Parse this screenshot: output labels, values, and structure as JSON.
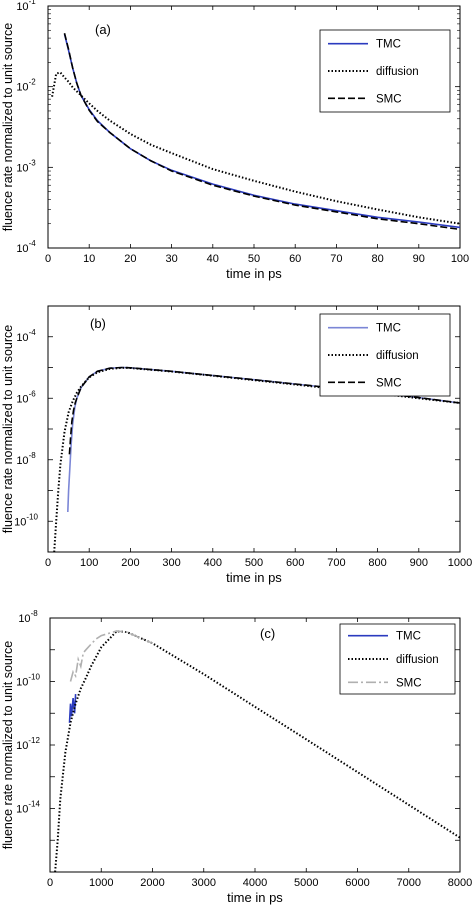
{
  "chart_data": [
    {
      "type": "line",
      "panel_label": "(a)",
      "xlabel": "time in ps",
      "ylabel": "fluence rate normalized to unit source",
      "xlim": [
        0,
        100
      ],
      "ylim_exp": [
        -4,
        -1
      ],
      "yscale": "log",
      "xticks": [
        0,
        10,
        20,
        30,
        40,
        50,
        60,
        70,
        80,
        90,
        100
      ],
      "ytick_exps": [
        -4,
        -3,
        -2,
        -1
      ],
      "legend": {
        "position": "top-right",
        "entries": [
          "TMC",
          "diffusion",
          "SMC"
        ]
      },
      "series": [
        {
          "name": "TMC",
          "color": "#2b3bbf",
          "style": "solid",
          "x": [
            4,
            5,
            6,
            7,
            8,
            10,
            12,
            15,
            20,
            25,
            30,
            40,
            50,
            60,
            70,
            80,
            90,
            100
          ],
          "y": [
            0.045,
            0.028,
            0.017,
            0.011,
            0.0078,
            0.0052,
            0.0038,
            0.0027,
            0.0017,
            0.0012,
            0.00092,
            0.00062,
            0.00045,
            0.00035,
            0.00029,
            0.00024,
            0.00021,
            0.00018
          ]
        },
        {
          "name": "diffusion",
          "color": "#000000",
          "style": "dotted",
          "x": [
            1,
            2,
            3,
            4,
            5,
            6,
            8,
            10,
            12,
            15,
            20,
            25,
            30,
            40,
            50,
            60,
            70,
            80,
            90,
            100
          ],
          "y": [
            0.0075,
            0.0145,
            0.015,
            0.013,
            0.0115,
            0.0098,
            0.0078,
            0.0062,
            0.005,
            0.0038,
            0.0026,
            0.0019,
            0.0015,
            0.00095,
            0.00068,
            0.0005,
            0.00038,
            0.0003,
            0.00024,
            0.0002
          ]
        },
        {
          "name": "SMC",
          "color": "#000000",
          "style": "dashed",
          "x": [
            4,
            5,
            6,
            7,
            8,
            10,
            12,
            15,
            20,
            25,
            30,
            40,
            50,
            60,
            70,
            80,
            90,
            100
          ],
          "y": [
            0.046,
            0.029,
            0.017,
            0.011,
            0.0078,
            0.0051,
            0.0037,
            0.0027,
            0.0017,
            0.0012,
            0.0009,
            0.0006,
            0.00044,
            0.00034,
            0.00028,
            0.00023,
            0.0002,
            0.00017
          ]
        }
      ]
    },
    {
      "type": "line",
      "panel_label": "(b)",
      "xlabel": "time in ps",
      "ylabel": "fluence rate normalized to unit source",
      "xlim": [
        0,
        1000
      ],
      "ylim_exp": [
        -11,
        -3
      ],
      "yscale": "log",
      "xticks": [
        0,
        100,
        200,
        300,
        400,
        500,
        600,
        700,
        800,
        900,
        1000
      ],
      "ytick_exps": [
        -10,
        -8,
        -6,
        -4
      ],
      "legend": {
        "position": "top-right",
        "entries": [
          "TMC",
          "diffusion",
          "SMC"
        ]
      },
      "series": [
        {
          "name": "TMC",
          "color": "#7b86d6",
          "style": "solid",
          "x": [
            48,
            50,
            53,
            56,
            60,
            65,
            70,
            80,
            100,
            120,
            150,
            180,
            200,
            300,
            400,
            500,
            600,
            700,
            800,
            900,
            1000
          ],
          "y": [
            2e-10,
            1e-09,
            5e-09,
            3e-08,
            1.5e-07,
            5e-07,
            1e-06,
            2.2e-06,
            5e-06,
            7.5e-06,
            9.5e-06,
            1e-05,
            9.8e-06,
            7.5e-06,
            5.5e-06,
            4e-06,
            2.9e-06,
            2.1e-06,
            1.5e-06,
            1.05e-06,
            7e-07
          ]
        },
        {
          "name": "diffusion",
          "color": "#000000",
          "style": "dotted",
          "x": [
            15,
            20,
            25,
            30,
            40,
            50,
            60,
            70,
            80,
            100,
            120,
            150,
            180,
            200,
            300,
            400,
            500,
            600,
            700,
            800,
            900,
            1000
          ],
          "y": [
            1e-11,
            1e-10,
            1e-09,
            7e-09,
            8e-08,
            3.5e-07,
            8e-07,
            1.5e-06,
            2.4e-06,
            4.8e-06,
            7e-06,
            9e-06,
            9.8e-06,
            9.6e-06,
            7.4e-06,
            5.4e-06,
            3.9e-06,
            2.8e-06,
            2e-06,
            1.45e-06,
            1e-06,
            7e-07
          ]
        },
        {
          "name": "SMC",
          "color": "#000000",
          "style": "dashed",
          "x": [
            52,
            55,
            58,
            62,
            66,
            70,
            80,
            100,
            120,
            150,
            180,
            200,
            300,
            400,
            500,
            600,
            700,
            800,
            900,
            1000
          ],
          "y": [
            1.5e-08,
            6e-08,
            1.8e-07,
            4e-07,
            7e-07,
            1e-06,
            2.2e-06,
            5e-06,
            7.5e-06,
            9.5e-06,
            1e-05,
            9.8e-06,
            7.5e-06,
            5.5e-06,
            4e-06,
            2.9e-06,
            2.1e-06,
            1.5e-06,
            1.05e-06,
            7e-07
          ]
        }
      ]
    },
    {
      "type": "line",
      "panel_label": "(c)",
      "xlabel": "time in ps",
      "ylabel": "fluence rate normalized to unit source",
      "xlim": [
        0,
        8000
      ],
      "ylim_exp": [
        -16,
        -8
      ],
      "yscale": "log",
      "xticks": [
        0,
        1000,
        2000,
        3000,
        4000,
        5000,
        6000,
        7000,
        8000
      ],
      "ytick_exps": [
        -14,
        -12,
        -10,
        -8
      ],
      "legend": {
        "position": "top-right",
        "entries": [
          "TMC",
          "diffusion",
          "SMC"
        ]
      },
      "series": [
        {
          "name": "TMC",
          "color": "#2b3bbf",
          "style": "solid",
          "x": [
            380,
            400,
            420,
            450,
            480,
            500
          ],
          "y": [
            5e-12,
            2e-11,
            8e-12,
            3e-11,
            1e-11,
            4e-11
          ]
        },
        {
          "name": "diffusion",
          "color": "#000000",
          "style": "dotted",
          "x": [
            100,
            150,
            200,
            300,
            400,
            500,
            600,
            700,
            800,
            1000,
            1300,
            1500,
            2000,
            3000,
            4000,
            5000,
            6000,
            7000,
            8000
          ],
          "y": [
            1e-16,
            1e-15,
            2e-14,
            6e-13,
            5e-12,
            2e-11,
            6e-11,
            1.3e-10,
            3e-10,
            1.2e-09,
            3.8e-09,
            3.6e-09,
            1.6e-09,
            1.7e-10,
            1.6e-11,
            1.5e-12,
            1.4e-13,
            1.3e-14,
            1.2e-15
          ]
        },
        {
          "name": "SMC",
          "color": "#b0b0b0",
          "style": "dashdot",
          "x": [
            400,
            450,
            500,
            550,
            600,
            650,
            700,
            800,
            900,
            1000,
            1300,
            1500,
            2000
          ],
          "y": [
            1e-10,
            2e-10,
            1.5e-10,
            5e-10,
            3e-10,
            8e-10,
            1e-09,
            1.5e-09,
            2.2e-09,
            2.8e-09,
            3.9e-09,
            3.6e-09,
            1.6e-09
          ]
        }
      ]
    }
  ]
}
